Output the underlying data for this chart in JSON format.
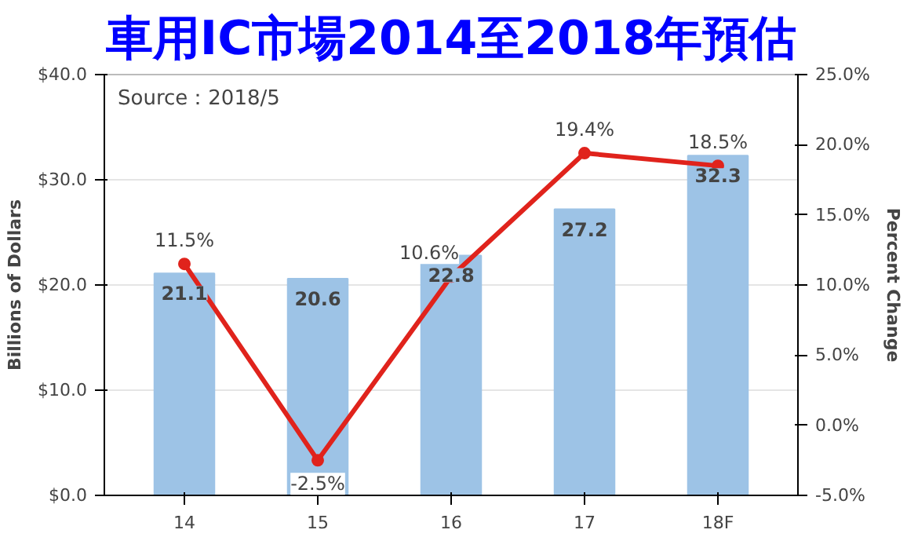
{
  "chart_data": {
    "type": "bar",
    "title": "車用IC市場2014至2018年預估",
    "ylabel": "Billions of Dollars",
    "y2label": "Percent Change",
    "annotations": [
      "Source：2018/5"
    ],
    "categories": [
      "14",
      "15",
      "16",
      "17",
      "18F"
    ],
    "series": [
      {
        "color": "#9dc3e6",
        "values": [
          21.1,
          20.6,
          22.8,
          27.2,
          32.3
        ],
        "value_labels": [
          "21.1",
          "20.6",
          "22.8",
          "27.2",
          "32.3"
        ]
      },
      {
        "type": "line",
        "axis": "y2",
        "color": "#e0231c",
        "marker": "circle",
        "values": [
          11.5,
          -2.5,
          10.6,
          19.4,
          18.5
        ],
        "value_labels": [
          "11.5%",
          "-2.5%",
          "10.6%",
          "19.4%",
          "18.5%"
        ]
      }
    ],
    "ylim": [
      0,
      40
    ],
    "yticks": [
      {
        "value": 0,
        "label": "$0.0"
      },
      {
        "value": 10,
        "label": "$10.0"
      },
      {
        "value": 20,
        "label": "$20.0"
      },
      {
        "value": 30,
        "label": "$30.0"
      },
      {
        "value": 40,
        "label": "$40.0"
      }
    ],
    "y2lim": [
      -5,
      25
    ],
    "y2ticks": [
      {
        "value": -5,
        "label": "-5.0%"
      },
      {
        "value": 0,
        "label": "0.0%"
      },
      {
        "value": 5,
        "label": "5.0%"
      },
      {
        "value": 10,
        "label": "10.0%"
      },
      {
        "value": 15,
        "label": "15.0%"
      },
      {
        "value": 20,
        "label": "20.0%"
      },
      {
        "value": 25,
        "label": "25.0%"
      }
    ],
    "grid": "y"
  }
}
